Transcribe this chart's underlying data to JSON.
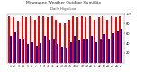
{
  "title": "Milwaukee Weather Outdoor Humidity",
  "subtitle": "Daily High/Low",
  "highs": [
    95,
    93,
    87,
    95,
    93,
    95,
    88,
    95,
    95,
    93,
    95,
    88,
    80,
    80,
    88,
    95,
    93,
    95,
    93,
    95,
    88,
    93,
    95,
    88,
    95,
    93,
    95
  ],
  "lows": [
    55,
    62,
    48,
    50,
    38,
    42,
    35,
    40,
    55,
    45,
    50,
    38,
    32,
    30,
    42,
    55,
    45,
    50,
    48,
    55,
    42,
    50,
    58,
    48,
    60,
    65,
    70
  ],
  "labels": [
    "1",
    "2",
    "3",
    "4",
    "5",
    "6",
    "7",
    "8",
    "9",
    "10",
    "11",
    "12",
    "13",
    "14",
    "15",
    "16",
    "17",
    "18",
    "19",
    "20",
    "21",
    "22",
    "23",
    "24",
    "25",
    "26",
    "27"
  ],
  "high_color": "#ff0000",
  "low_color": "#0000cc",
  "bg_color": "#ffffff",
  "ylim": [
    0,
    100
  ],
  "legend_high": "High",
  "legend_low": "Low",
  "grid_color": "#aaaaaa",
  "yticks": [
    20,
    40,
    60,
    80,
    100
  ]
}
